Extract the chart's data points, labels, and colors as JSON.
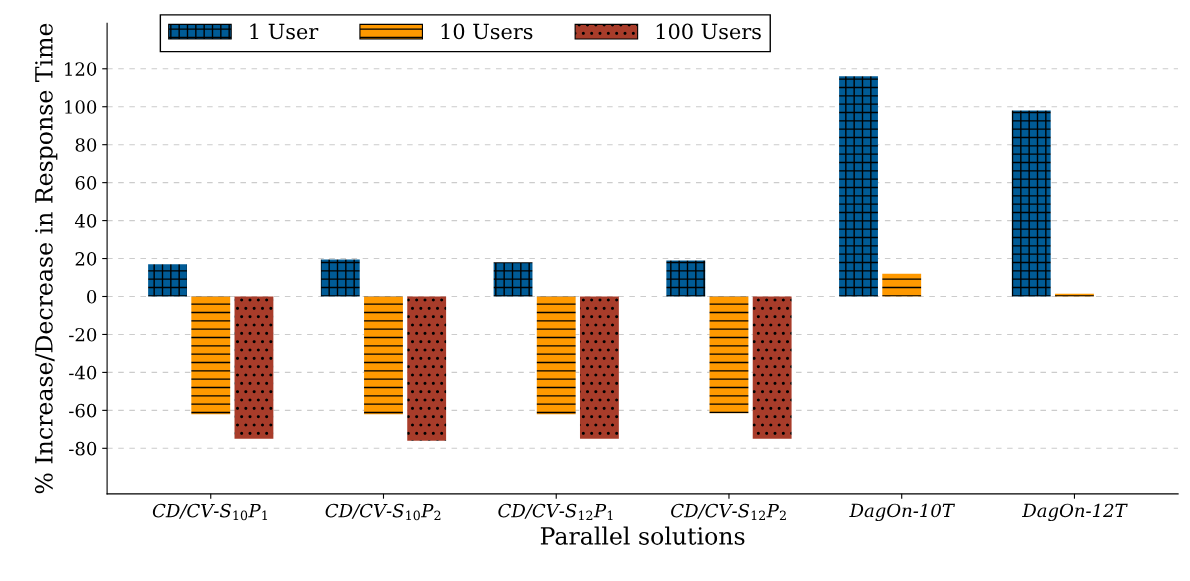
{
  "chart_data": {
    "type": "bar",
    "xlabel": "Parallel solutions",
    "ylabel": "% Increase/Decrease in Response Time",
    "categories": [
      "CD/CV-S$_{10}$P$_{1}$",
      "CD/CV-S$_{10}$P$_{2}$",
      "CD/CV-S$_{12}$P$_{1}$",
      "CD/CV-S$_{12}$P$_{2}$",
      "DagOn-10T",
      "DagOn-12T"
    ],
    "series": [
      {
        "name": "1 User",
        "color": "#005b96",
        "values": [
          17,
          19.5,
          18,
          19,
          116,
          98
        ]
      },
      {
        "name": "10 Users",
        "color": "#ff9900",
        "values": [
          -62,
          -62,
          -62,
          -61.5,
          12,
          1.5
        ]
      },
      {
        "name": "100 Users",
        "color": "#a83c2a",
        "values": [
          -75,
          -76,
          -75,
          -75,
          null,
          null
        ]
      }
    ],
    "ylim": [
      -104,
      144
    ],
    "yticks": [
      -80,
      -60,
      -40,
      -20,
      0,
      20,
      40,
      60,
      80,
      100,
      120
    ],
    "grid": "y",
    "legend": "top left"
  }
}
